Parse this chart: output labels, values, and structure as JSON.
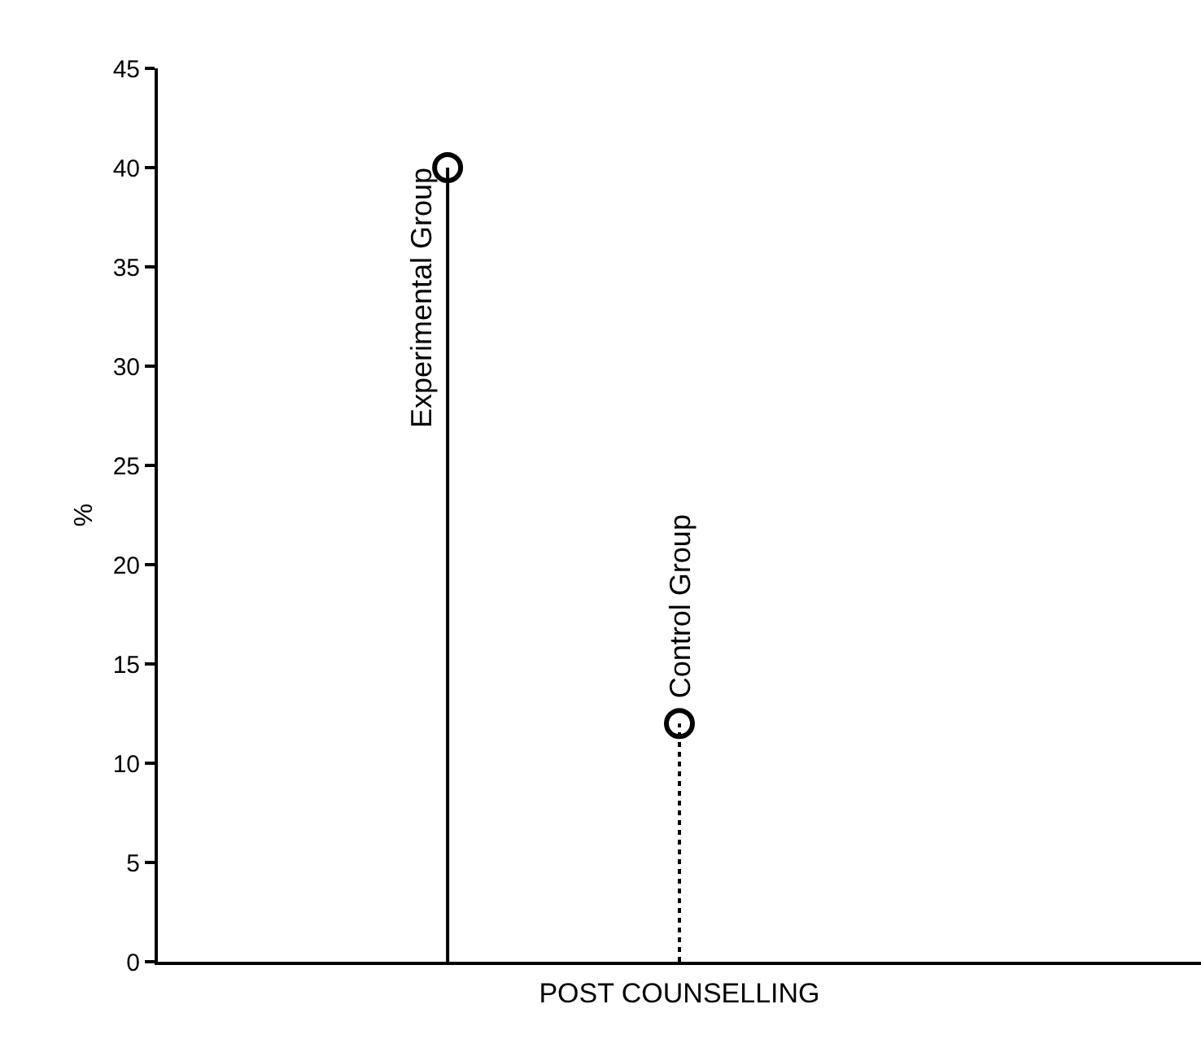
{
  "chart_data": {
    "type": "lollipop",
    "categories": [
      null,
      null,
      null,
      null,
      null,
      null,
      null,
      null,
      null
    ],
    "xlabel": "POST COUNSELLING",
    "ylabel": "%",
    "series": [
      {
        "name": "Experimental Group",
        "color": "#000000",
        "values": [
          null,
          null,
          40,
          null,
          null,
          null,
          null,
          null,
          null
        ],
        "line_style": "solid"
      },
      {
        "name": "Control Group",
        "color": "#000000",
        "values": [
          null,
          null,
          null,
          null,
          12,
          null,
          null,
          null,
          null
        ],
        "line_style": "dotted"
      }
    ],
    "ylim": [
      0,
      45
    ],
    "yticks": [
      0,
      5,
      10,
      15,
      20,
      25,
      30,
      35,
      40,
      45
    ],
    "marker": "circle",
    "grid": false,
    "tick_labels": "y"
  }
}
